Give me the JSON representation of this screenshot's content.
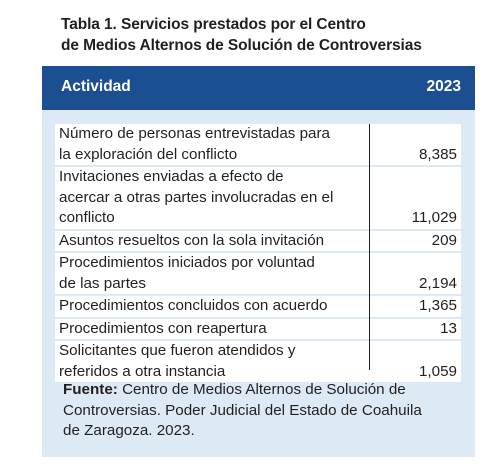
{
  "title_line1": "Tabla 1. Servicios prestados por el Centro",
  "title_line2": "de Medios Alternos de Solución de Controversias",
  "header": {
    "activity": "Actividad",
    "year": "2023"
  },
  "rows": [
    {
      "label_lines": [
        "Número de personas entrevistadas para",
        "la exploración del conflicto"
      ],
      "value": "8,385"
    },
    {
      "label_lines": [
        "Invitaciones enviadas a efecto de",
        "acercar a otras partes involucradas en el",
        "conflicto"
      ],
      "value": "11,029"
    },
    {
      "label_lines": [
        "Asuntos resueltos con la sola invitación"
      ],
      "value": "209"
    },
    {
      "label_lines": [
        "Procedimientos iniciados por voluntad",
        "de las partes"
      ],
      "value": "2,194"
    },
    {
      "label_lines": [
        "Procedimientos concluidos con acuerdo"
      ],
      "value": "1,365"
    },
    {
      "label_lines": [
        "Procedimientos con reapertura"
      ],
      "value": "13"
    },
    {
      "label_lines": [
        "Solicitantes que fueron atendidos y",
        "referidos a otra instancia"
      ],
      "value": "1,059"
    }
  ],
  "source": {
    "label": "Fuente:",
    "line1": " Centro de Medios Alternos de Solución de",
    "line2": "Controversias. Poder Judicial del Estado de Coahuila",
    "line3": "de Zaragoza. 2023."
  }
}
